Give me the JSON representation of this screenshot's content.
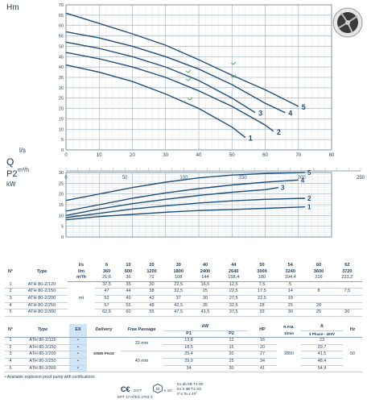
{
  "chart_data": [
    {
      "type": "line",
      "ylabel": "Hm",
      "xlabel": "l/s",
      "xlim": [
        0,
        80
      ],
      "ylim": [
        0,
        70
      ],
      "xticks": [
        0,
        10,
        20,
        30,
        40,
        50,
        60,
        70,
        80
      ],
      "yticks": [
        0,
        5,
        10,
        15,
        20,
        25,
        30,
        35,
        40,
        45,
        50,
        55,
        60,
        65,
        70
      ],
      "grid": true,
      "series": [
        {
          "name": "1",
          "x": [
            0,
            10,
            20,
            30,
            40,
            50,
            54
          ],
          "y": [
            41,
            37.5,
            33,
            27,
            20,
            11,
            6
          ]
        },
        {
          "name": "2",
          "x": [
            0,
            10,
            20,
            30,
            40,
            50,
            60,
            62.5
          ],
          "y": [
            47,
            44,
            40,
            35,
            28.5,
            21,
            12,
            9
          ]
        },
        {
          "name": "3",
          "x": [
            0,
            10,
            20,
            30,
            40,
            50,
            57
          ],
          "y": [
            52,
            49,
            45,
            40,
            33.5,
            25,
            18
          ]
        },
        {
          "name": "4",
          "x": [
            0,
            10,
            20,
            30,
            40,
            50,
            60,
            66
          ],
          "y": [
            57,
            54,
            50,
            45,
            39,
            31.5,
            22.5,
            18
          ]
        },
        {
          "name": "5",
          "x": [
            0,
            10,
            20,
            30,
            40,
            50,
            60,
            70
          ],
          "y": [
            66,
            61,
            56,
            50.5,
            43.5,
            36,
            29,
            21
          ]
        }
      ]
    },
    {
      "type": "axis",
      "ylabel": "Q",
      "unit": "m³/h",
      "xlim": [
        0,
        250
      ],
      "xticks": [
        0,
        50,
        100,
        150,
        200,
        250
      ]
    },
    {
      "type": "line",
      "ylabel": "P2",
      "unit": "kW",
      "xlim": [
        0,
        80
      ],
      "ylim": [
        0,
        30
      ],
      "xticks": [
        0,
        10,
        20,
        30,
        40,
        50,
        60,
        70,
        80
      ],
      "yticks": [
        0,
        5,
        10,
        15,
        20,
        25,
        30
      ],
      "grid": true,
      "series": [
        {
          "name": "1",
          "x": [
            0,
            10,
            20,
            30,
            40,
            50,
            60,
            72
          ],
          "y": [
            8,
            9.5,
            10.5,
            11.5,
            12.3,
            12.8,
            13.3,
            14
          ]
        },
        {
          "name": "2",
          "x": [
            0,
            10,
            20,
            30,
            40,
            50,
            60,
            72
          ],
          "y": [
            9,
            11,
            13,
            14.5,
            15.8,
            16.8,
            17.5,
            18
          ]
        },
        {
          "name": "3",
          "x": [
            0,
            10,
            20,
            30,
            40,
            50,
            60,
            64
          ],
          "y": [
            10,
            13,
            15.5,
            17.5,
            19.3,
            20.8,
            22,
            23
          ]
        },
        {
          "name": "4",
          "x": [
            0,
            10,
            20,
            30,
            40,
            50,
            60,
            70
          ],
          "y": [
            12,
            15,
            18,
            20.5,
            22.5,
            24.2,
            25.5,
            26.5
          ]
        },
        {
          "name": "5",
          "x": [
            0,
            10,
            20,
            30,
            40,
            50,
            60,
            72
          ],
          "y": [
            17,
            20,
            23,
            25.5,
            27.5,
            28.8,
            29.5,
            30
          ]
        }
      ]
    }
  ],
  "curve_labels": [
    "1",
    "2",
    "3",
    "4",
    "5"
  ],
  "perf_table": {
    "units": [
      "l/s",
      "l/m",
      "m³/h"
    ],
    "cols": [
      [
        "6",
        "360",
        "21,6"
      ],
      [
        "10",
        "600",
        "36"
      ],
      [
        "20",
        "1200",
        "72"
      ],
      [
        "30",
        "1800",
        "108"
      ],
      [
        "40",
        "2400",
        "144"
      ],
      [
        "44",
        "2640",
        "158,4"
      ],
      [
        "50",
        "3000",
        "180"
      ],
      [
        "54",
        "3240",
        "194,4"
      ],
      [
        "60",
        "3600",
        "216"
      ],
      [
        "62",
        "3720",
        "223,2"
      ]
    ],
    "n_label": "N°",
    "type_label": "Type",
    "mt_label": "mt",
    "rows": [
      {
        "n": "1",
        "type": "ATH 80-2/120",
        "v": [
          "37,5",
          "35",
          "30",
          "22,5",
          "16,5",
          "12,5",
          "7,5",
          "5",
          "",
          ""
        ]
      },
      {
        "n": "2",
        "type": "ATH 80-2/150",
        "v": [
          "47",
          "44",
          "38",
          "32,5",
          "25",
          "22,5",
          "17,5",
          "14",
          "8",
          "7,5"
        ]
      },
      {
        "n": "3",
        "type": "ATH 80-2/200",
        "v": [
          "52",
          "49",
          "43",
          "37",
          "30",
          "27,5",
          "22,5",
          "19",
          "",
          ""
        ]
      },
      {
        "n": "4",
        "type": "ATH 80-2/250",
        "v": [
          "57",
          "55",
          "48",
          "42,5",
          "35",
          "32,5",
          "28",
          "25",
          "20",
          ""
        ]
      },
      {
        "n": "5",
        "type": "ATH 80-2/300",
        "v": [
          "62,5",
          "60",
          "55",
          "47,5",
          "41,5",
          "37,5",
          "33",
          "30",
          "25",
          "20"
        ]
      }
    ]
  },
  "spec_table": {
    "headers": {
      "n": "N°",
      "type": "Type",
      "ex": "EX",
      "delivery": "Delivery",
      "passage": "Free Passage",
      "kw": "kW",
      "p1": "P1",
      "p2": "P2",
      "hp": "HP",
      "rpm": "R.P.M.",
      "rpm_unit": "1/min",
      "amp": "A",
      "phase": "3 Phase - 400V",
      "hz": "Hz"
    },
    "delivery": "DN80 PN16",
    "passage_1": "33 mm",
    "passage_2": "40 mm",
    "rpm": "2850",
    "hz": "50",
    "rows": [
      {
        "n": "1",
        "type": "ATH 80-2/120",
        "ex": "•",
        "p1": "13,8",
        "p2": "12",
        "hp": "16",
        "a": "23"
      },
      {
        "n": "2",
        "type": "ATH 80-2/150",
        "ex": "•",
        "p1": "18,5",
        "p2": "15",
        "hp": "20",
        "a": "29,7"
      },
      {
        "n": "3",
        "type": "ATH 80-2/200",
        "ex": "•",
        "p1": "25,4",
        "p2": "20",
        "hp": "27",
        "a": "41,5"
      },
      {
        "n": "4",
        "type": "ATH 80-2/250",
        "ex": "•",
        "p1": "29,9",
        "p2": "25",
        "hp": "34",
        "a": "48,4"
      },
      {
        "n": "5",
        "type": "ATH 80-2/300",
        "ex": "•",
        "p1": "34",
        "p2": "30",
        "hp": "41",
        "a": "54,9"
      }
    ]
  },
  "footnote": "• Available explosion proof pump with certifications",
  "certs": {
    "ce": "C€",
    "ce_num": "0477",
    "ex_group": "II 2G",
    "atex": "EPT 17 ATEX 2703 X",
    "ex_line1": "Ex db IIB T4 Gb",
    "ex_line2": "Ex h IIB T4 Gb",
    "ex_line3": "0°≤ Ta ≤ 40°"
  },
  "colors": {
    "curve": "#1f4e79",
    "accent": "#2a9fd6",
    "ex_bg": "#cfe4f5"
  },
  "icons": [
    "pump-impeller-icon",
    "ex-hexagon-icon"
  ]
}
